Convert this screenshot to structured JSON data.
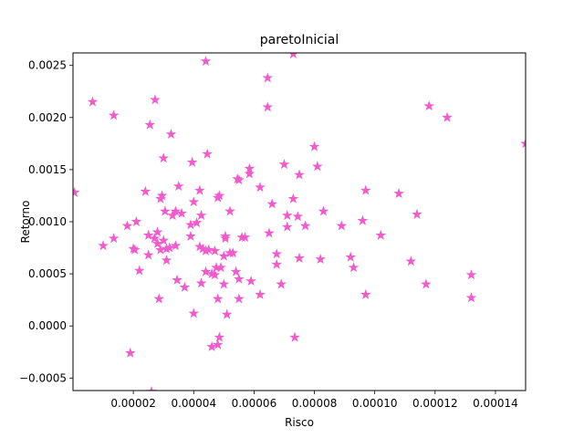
{
  "chart_data": {
    "type": "scatter",
    "title": "paretoInicial",
    "xlabel": "Risco",
    "ylabel": "Retorno",
    "xlim": [
      0.0,
      0.00015
    ],
    "ylim": [
      -0.00062,
      0.00262
    ],
    "xticks": [
      2e-05,
      4e-05,
      6e-05,
      8e-05,
      0.0001,
      0.00012,
      0.00014
    ],
    "xtick_labels": [
      "0.00002",
      "0.00004",
      "0.00006",
      "0.00008",
      "0.00010",
      "0.00012",
      "0.00014"
    ],
    "yticks": [
      -0.0005,
      0.0,
      0.0005,
      0.001,
      0.0015,
      0.002,
      0.0025
    ],
    "ytick_labels": [
      "−0.0005",
      "0.0000",
      "0.0005",
      "0.0010",
      "0.0015",
      "0.0020",
      "0.0025"
    ],
    "marker": "star",
    "color": "#f05ccc",
    "grid": false,
    "series": [
      {
        "values": [
          [
            5e-07,
            0.00128
          ],
          [
            6.5e-06,
            0.00215
          ],
          [
            1.35e-05,
            0.00202
          ],
          [
            1e-05,
            0.00077
          ],
          [
            1.35e-05,
            0.00084
          ],
          [
            1.8e-05,
            0.00096
          ],
          [
            1.9e-05,
            -0.00026
          ],
          [
            2e-05,
            0.00074
          ],
          [
            2.05e-05,
            0.00073
          ],
          [
            2.1e-05,
            0.001
          ],
          [
            2.2e-05,
            0.00053
          ],
          [
            2.4e-05,
            0.00129
          ],
          [
            2.55e-05,
            0.00193
          ],
          [
            2.5e-05,
            0.00087
          ],
          [
            2.5e-05,
            0.00068
          ],
          [
            2.6e-05,
            -0.00063
          ],
          [
            2.72e-05,
            0.00217
          ],
          [
            2.7e-05,
            0.00084
          ],
          [
            2.8e-05,
            0.0009
          ],
          [
            2.8e-05,
            0.00079
          ],
          [
            2.85e-05,
            0.00026
          ],
          [
            2.9e-05,
            0.00073
          ],
          [
            2.9e-05,
            0.00122
          ],
          [
            2.95e-05,
            0.00125
          ],
          [
            3e-05,
            0.00161
          ],
          [
            3e-05,
            0.00082
          ],
          [
            3.05e-05,
            0.0011
          ],
          [
            3.1e-05,
            0.00063
          ],
          [
            3.1e-05,
            0.00074
          ],
          [
            3.2e-05,
            0.00075
          ],
          [
            3.25e-05,
            0.00184
          ],
          [
            3.3e-05,
            0.00106
          ],
          [
            3.4e-05,
            0.0011
          ],
          [
            3.45e-05,
            0.00044
          ],
          [
            3.4e-05,
            0.00077
          ],
          [
            3.5e-05,
            0.00134
          ],
          [
            3.6e-05,
            0.00108
          ],
          [
            3.7e-05,
            0.00037
          ],
          [
            3.9e-05,
            0.00086
          ],
          [
            3.9e-05,
            0.00097
          ],
          [
            3.95e-05,
            0.00157
          ],
          [
            4e-05,
            0.00119
          ],
          [
            4e-05,
            0.00012
          ],
          [
            4.1e-05,
            0.00099
          ],
          [
            4.2e-05,
            0.0013
          ],
          [
            4.2e-05,
            0.00076
          ],
          [
            4.25e-05,
            0.00106
          ],
          [
            4.3e-05,
            0.00074
          ],
          [
            4.25e-05,
            0.00041
          ],
          [
            4.4e-05,
            0.00254
          ],
          [
            4.4e-05,
            0.00072
          ],
          [
            4.4e-05,
            0.00052
          ],
          [
            4.45e-05,
            0.00165
          ],
          [
            4.5e-05,
            0.00073
          ],
          [
            4.6e-05,
            0.0005
          ],
          [
            4.6e-05,
            -0.0002
          ],
          [
            4.7e-05,
            0.00072
          ],
          [
            4.7e-05,
            0.00049
          ],
          [
            4.75e-05,
            0.00056
          ],
          [
            4.8e-05,
            0.00123
          ],
          [
            4.8e-05,
            0.00026
          ],
          [
            4.8e-05,
            -0.00018
          ],
          [
            4.85e-05,
            0.00125
          ],
          [
            4.85e-05,
            -0.00011
          ],
          [
            4.9e-05,
            0.00056
          ],
          [
            5e-05,
            0.0004
          ],
          [
            5e-05,
            0.00067
          ],
          [
            5.05e-05,
            0.00086
          ],
          [
            5.05e-05,
            0.00084
          ],
          [
            5.1e-05,
            0.00011
          ],
          [
            5.2e-05,
            0.0011
          ],
          [
            5.2e-05,
            0.0007
          ],
          [
            5.3e-05,
            0.0007
          ],
          [
            5.4e-05,
            0.00052
          ],
          [
            5.45e-05,
            0.00141
          ],
          [
            5.5e-05,
            0.0014
          ],
          [
            5.5e-05,
            0.00026
          ],
          [
            5.5e-05,
            0.00045
          ],
          [
            5.6e-05,
            0.00085
          ],
          [
            5.7e-05,
            0.00085
          ],
          [
            5.85e-05,
            0.00151
          ],
          [
            5.85e-05,
            0.00146
          ],
          [
            5.9e-05,
            0.00043
          ],
          [
            6.2e-05,
            0.00133
          ],
          [
            6.2e-05,
            0.0003
          ],
          [
            6.45e-05,
            0.00238
          ],
          [
            6.45e-05,
            0.0021
          ],
          [
            6.5e-05,
            0.00089
          ],
          [
            6.6e-05,
            0.00117
          ],
          [
            6.75e-05,
            0.00069
          ],
          [
            6.75e-05,
            0.00059
          ],
          [
            6.9e-05,
            0.0004
          ],
          [
            7e-05,
            0.00155
          ],
          [
            7.1e-05,
            0.00106
          ],
          [
            7.1e-05,
            0.00095
          ],
          [
            7.3e-05,
            0.00261
          ],
          [
            7.3e-05,
            0.00122
          ],
          [
            7.35e-05,
            -0.00011
          ],
          [
            7.45e-05,
            0.00105
          ],
          [
            7.5e-05,
            0.00145
          ],
          [
            7.5e-05,
            0.00065
          ],
          [
            7.7e-05,
            0.00096
          ],
          [
            8e-05,
            0.00172
          ],
          [
            8.1e-05,
            0.00153
          ],
          [
            8.2e-05,
            0.00064
          ],
          [
            8.3e-05,
            0.0011
          ],
          [
            8.9e-05,
            0.00096
          ],
          [
            9.2e-05,
            0.00066
          ],
          [
            9.3e-05,
            0.00056
          ],
          [
            9.6e-05,
            0.00101
          ],
          [
            9.7e-05,
            0.0013
          ],
          [
            9.7e-05,
            0.0003
          ],
          [
            0.000102,
            0.00087
          ],
          [
            0.000108,
            0.00127
          ],
          [
            0.000112,
            0.00062
          ],
          [
            0.000114,
            0.00107
          ],
          [
            0.000117,
            0.0004
          ],
          [
            0.000118,
            0.00211
          ],
          [
            0.000124,
            0.002
          ],
          [
            0.000132,
            0.00027
          ],
          [
            0.000132,
            0.00049
          ],
          [
            0.00015,
            0.00175
          ]
        ]
      }
    ]
  }
}
